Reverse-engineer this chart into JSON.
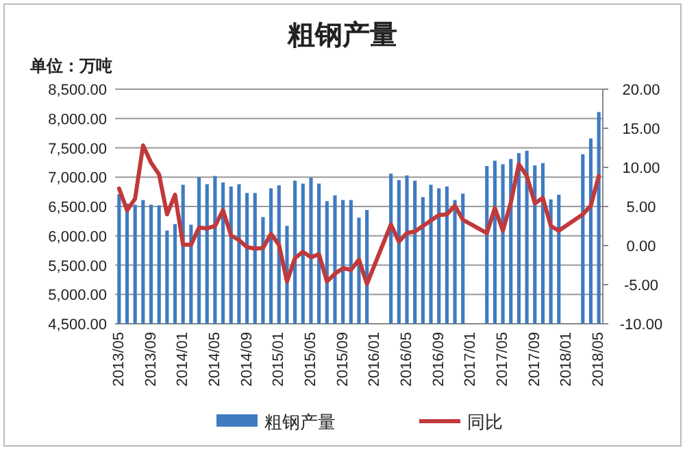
{
  "chart_data": {
    "type": "bar",
    "title": "粗钢产量",
    "ylabel": "单位：万吨",
    "categories": [
      "2013/05",
      null,
      null,
      null,
      "2013/09",
      null,
      null,
      null,
      "2014/01",
      null,
      null,
      null,
      "2014/05",
      null,
      null,
      null,
      "2014/09",
      null,
      null,
      null,
      "2015/01",
      null,
      null,
      null,
      "2015/05",
      null,
      null,
      null,
      "2015/09",
      null,
      null,
      null,
      "2016/01",
      null,
      null,
      null,
      "2016/05",
      null,
      null,
      null,
      "2016/09",
      null,
      null,
      null,
      "2017/01",
      null,
      null,
      null,
      "2017/05",
      null,
      null,
      null,
      "2017/09",
      null,
      null,
      null,
      "2018/01",
      null,
      null,
      null,
      "2018/05"
    ],
    "series": [
      {
        "name": "粗钢产量",
        "color": "#3f7bc1",
        "values": [
          6710,
          6550,
          6530,
          6610,
          6530,
          6520,
          6090,
          6200,
          6870,
          6190,
          7000,
          6880,
          7020,
          6910,
          6840,
          6880,
          6730,
          6730,
          6320,
          6810,
          6860,
          6170,
          6940,
          6890,
          6990,
          6890,
          6590,
          6690,
          6610,
          6610,
          6310,
          6440,
          null,
          null,
          7060,
          6950,
          7030,
          6940,
          6660,
          6870,
          6810,
          6840,
          6610,
          6720,
          null,
          null,
          7190,
          7280,
          7220,
          7310,
          7410,
          7450,
          7200,
          7240,
          6620,
          6700,
          null,
          null,
          7390,
          7660,
          8110
        ]
      },
      {
        "name": "同比",
        "type": "line",
        "axis": "y2",
        "color": "#c0393b",
        "values": [
          7.3,
          4.5,
          6.0,
          12.8,
          10.6,
          9.1,
          4.0,
          6.5,
          0.1,
          0.1,
          2.3,
          2.2,
          2.5,
          4.5,
          1.3,
          0.7,
          -0.2,
          -0.4,
          -0.3,
          1.5,
          0.1,
          -4.6,
          -1.6,
          -0.8,
          -1.5,
          -1.1,
          -4.6,
          -3.6,
          -2.9,
          -3.1,
          -1.8,
          -4.9,
          null,
          null,
          2.7,
          0.5,
          1.6,
          1.8,
          2.5,
          3.2,
          3.9,
          4.0,
          5.1,
          3.3,
          null,
          null,
          1.6,
          4.8,
          1.9,
          5.5,
          10.4,
          8.9,
          5.4,
          6.1,
          2.5,
          1.9,
          null,
          null,
          4.0,
          5.1,
          8.9
        ]
      }
    ],
    "ylim": [
      4500,
      8500
    ],
    "yticks": [
      {
        "value": 4500,
        "label": "4,500.00"
      },
      {
        "value": 5000,
        "label": "5,000.00"
      },
      {
        "value": 5500,
        "label": "5,500.00"
      },
      {
        "value": 6000,
        "label": "6,000.00"
      },
      {
        "value": 6500,
        "label": "6,500.00"
      },
      {
        "value": 7000,
        "label": "7,000.00"
      },
      {
        "value": 7500,
        "label": "7,500.00"
      },
      {
        "value": 8000,
        "label": "8,000.00"
      },
      {
        "value": 8500,
        "label": "8,500.00"
      }
    ],
    "y2lim": [
      -10,
      20
    ],
    "y2ticks": [
      {
        "value": -10,
        "label": "-10.00"
      },
      {
        "value": -5,
        "label": "-5.00"
      },
      {
        "value": 0,
        "label": "0.00"
      },
      {
        "value": 5,
        "label": "5.00"
      },
      {
        "value": 10,
        "label": "10.00"
      },
      {
        "value": 15,
        "label": "15.00"
      },
      {
        "value": 20,
        "label": "20.00"
      }
    ],
    "grid": "y",
    "legend": "bottom"
  }
}
